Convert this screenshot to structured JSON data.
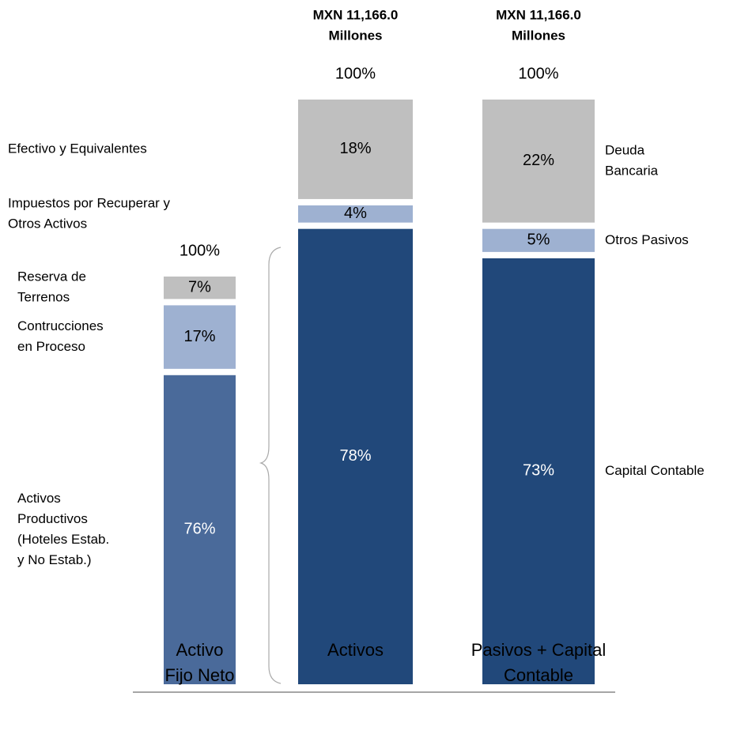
{
  "chart_data": {
    "type": "stacked_bar",
    "bars": [
      {
        "category": [
          "Activo",
          "Fijo Neto"
        ],
        "total": 100,
        "total_label": "100%",
        "segments": [
          {
            "name": [
              "Activos",
              "Productivos",
              "(Hoteles Estab.",
              "y No Estab.)"
            ],
            "value": 76,
            "value_label": "76%",
            "color": "#4a6a9a"
          },
          {
            "name": [
              "Contrucciones",
              "en Proceso"
            ],
            "value": 17,
            "value_label": "17%",
            "color": "#9eb1d1"
          },
          {
            "name": [
              "Reserva de",
              "Terrenos"
            ],
            "value": 7,
            "value_label": "7%",
            "color": "#bfbfbf"
          }
        ]
      },
      {
        "category": [
          "Activos"
        ],
        "header": [
          "MXN 11,166.0",
          "Millones"
        ],
        "total": 100,
        "total_label": "100%",
        "segments": [
          {
            "value": 78,
            "value_label": "78%",
            "color": "#21487a"
          },
          {
            "name": [
              "Impuestos por Recuperar y",
              "Otros Activos"
            ],
            "value": 4,
            "value_label": "4%",
            "color": "#9eb1d1"
          },
          {
            "name": [
              "Efectivo y Equivalentes"
            ],
            "value": 18,
            "value_label": "18%",
            "color": "#bfbfbf"
          }
        ]
      },
      {
        "category": [
          "Pasivos + Capital",
          "Contable"
        ],
        "header": [
          "MXN 11,166.0",
          "Millones"
        ],
        "total": 100,
        "total_label": "100%",
        "segments": [
          {
            "name": [
              "Capital Contable"
            ],
            "value": 73,
            "value_label": "73%",
            "color": "#21487a"
          },
          {
            "name": [
              "Otros Pasivos"
            ],
            "value": 5,
            "value_label": "5%",
            "color": "#9eb1d1"
          },
          {
            "name": [
              "Deuda",
              "Bancaria"
            ],
            "value": 22,
            "value_label": "22%",
            "color": "#bfbfbf"
          }
        ]
      }
    ]
  }
}
